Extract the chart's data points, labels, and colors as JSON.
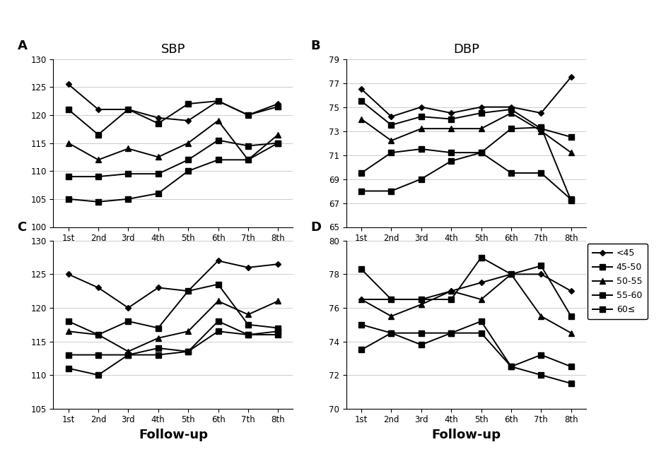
{
  "x_labels": [
    "1st",
    "2nd",
    "3rd",
    "4th",
    "5th",
    "6th",
    "7th",
    "8th"
  ],
  "legend_labels": [
    "<45",
    "45-50",
    "50-55",
    "55-60",
    "60≤"
  ],
  "panel_A": {
    "series": [
      [
        125.5,
        121.0,
        121.0,
        119.5,
        119.0,
        122.5,
        120.0,
        122.0
      ],
      [
        121.0,
        116.5,
        121.0,
        118.5,
        122.0,
        122.5,
        120.0,
        121.5
      ],
      [
        115.0,
        112.0,
        114.0,
        112.5,
        115.0,
        119.0,
        112.0,
        116.5
      ],
      [
        109.0,
        109.0,
        109.5,
        109.5,
        112.0,
        115.5,
        114.5,
        115.0
      ],
      [
        105.0,
        104.5,
        105.0,
        106.0,
        110.0,
        112.0,
        112.0,
        115.0
      ]
    ]
  },
  "panel_B": {
    "series": [
      [
        76.5,
        74.2,
        75.0,
        74.5,
        75.0,
        75.0,
        74.5,
        77.5
      ],
      [
        75.5,
        73.5,
        74.2,
        74.0,
        74.5,
        74.8,
        73.2,
        72.5
      ],
      [
        74.0,
        72.2,
        73.2,
        73.2,
        73.2,
        74.5,
        73.0,
        71.2
      ],
      [
        69.5,
        71.2,
        71.5,
        71.2,
        71.2,
        69.5,
        69.5,
        67.3
      ],
      [
        68.0,
        68.0,
        69.0,
        70.5,
        71.2,
        73.2,
        73.3,
        67.2
      ]
    ]
  },
  "panel_C": {
    "series": [
      [
        125.0,
        123.0,
        120.0,
        123.0,
        122.5,
        127.0,
        126.0,
        126.5
      ],
      [
        118.0,
        116.0,
        118.0,
        117.0,
        122.5,
        123.5,
        117.5,
        117.0
      ],
      [
        116.5,
        116.0,
        113.5,
        115.5,
        116.5,
        121.0,
        119.0,
        121.0
      ],
      [
        113.0,
        113.0,
        113.0,
        114.0,
        113.5,
        118.0,
        116.0,
        116.5
      ],
      [
        111.0,
        110.0,
        113.0,
        113.0,
        113.5,
        116.5,
        116.0,
        116.0
      ]
    ]
  },
  "panel_D": {
    "series": [
      [
        76.5,
        76.5,
        76.5,
        77.0,
        77.5,
        78.0,
        78.0,
        77.0
      ],
      [
        78.3,
        76.5,
        76.5,
        76.5,
        79.0,
        78.0,
        78.5,
        75.5
      ],
      [
        76.5,
        75.5,
        76.2,
        77.0,
        76.5,
        78.0,
        75.5,
        74.5
      ],
      [
        75.0,
        74.5,
        73.8,
        74.5,
        75.2,
        72.5,
        73.2,
        72.5
      ],
      [
        73.5,
        74.5,
        74.5,
        74.5,
        74.5,
        72.5,
        72.0,
        71.5
      ]
    ]
  },
  "markers": [
    "D",
    "s",
    "^",
    "s",
    "s"
  ],
  "marker_sizes": [
    5,
    6,
    6,
    5,
    5
  ],
  "ylim_A": [
    100,
    130
  ],
  "ylim_B": [
    65,
    79
  ],
  "ylim_C": [
    105,
    130
  ],
  "ylim_D": [
    70,
    80
  ],
  "yticks_A": [
    100,
    105,
    110,
    115,
    120,
    125,
    130
  ],
  "yticks_B": [
    65,
    67,
    69,
    71,
    73,
    75,
    77,
    79
  ],
  "yticks_C": [
    105,
    110,
    115,
    120,
    125,
    130
  ],
  "yticks_D": [
    70,
    72,
    74,
    76,
    78,
    80
  ],
  "col_title_left": "SBP",
  "col_title_right": "DBP",
  "xlabel": "Follow-up",
  "panel_labels": [
    "A",
    "B",
    "C",
    "D"
  ]
}
